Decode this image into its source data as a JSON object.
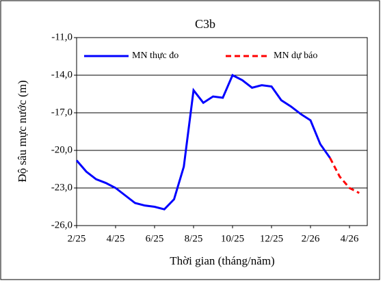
{
  "chart_data": {
    "type": "line",
    "title": "C3b",
    "x_label": "Thời gian  (tháng/năm)",
    "y_label": "Độ sâu mực nước (m)",
    "categories": [
      "2/25",
      null,
      null,
      null,
      "4/25",
      null,
      null,
      null,
      "6/25",
      null,
      null,
      null,
      "8/25",
      null,
      null,
      null,
      "10/25",
      null,
      null,
      null,
      "12/25",
      null,
      null,
      null,
      "2/26",
      null,
      null,
      null,
      "4/26",
      null
    ],
    "series": [
      {
        "name": "MN thực đo",
        "color": "#0000ff",
        "dash": false,
        "values": [
          -20.8,
          -21.7,
          -22.3,
          -22.6,
          -23.0,
          -23.6,
          -24.2,
          -24.4,
          -24.5,
          -24.7,
          -23.9,
          -21.3,
          -15.2,
          -16.2,
          -15.7,
          -15.8,
          -14.0,
          -14.4,
          -15.0,
          -14.8,
          -14.9,
          -16.0,
          -16.5,
          -17.1,
          -17.6,
          -19.5,
          -20.6,
          null,
          null,
          null
        ]
      },
      {
        "name": "MN dự báo",
        "color": "#ff0000",
        "dash": true,
        "values": [
          null,
          null,
          null,
          null,
          null,
          null,
          null,
          null,
          null,
          null,
          null,
          null,
          null,
          null,
          null,
          null,
          null,
          null,
          null,
          null,
          null,
          null,
          null,
          null,
          null,
          null,
          -20.6,
          -22.1,
          -23.0,
          -23.4
        ]
      }
    ],
    "ylim": [
      -26,
      -11
    ],
    "yticks": [
      {
        "value": -26,
        "label": "-26,0"
      },
      {
        "value": -23,
        "label": "-23,0"
      },
      {
        "value": -20,
        "label": "-20,0"
      },
      {
        "value": -17,
        "label": "-17,0"
      },
      {
        "value": -14,
        "label": "-14,0"
      },
      {
        "value": -11,
        "label": "-11,0"
      }
    ],
    "grid": true,
    "legend": "top"
  }
}
